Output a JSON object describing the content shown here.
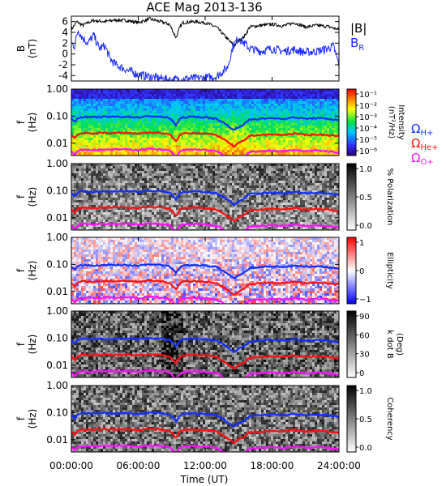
{
  "figure": {
    "title": "ACE Mag 2013-136"
  },
  "colors": {
    "B_mag": "#000000",
    "B_R": "#1a2bff",
    "H": "#1030ff",
    "He": "#ff1010",
    "O": "#ff10ff"
  },
  "legend": {
    "b_mag": "|B|",
    "b_r_base": "B",
    "b_r_sub": "R",
    "omega_h": "Ω",
    "omega_h_sub": "H+",
    "omega_he": "Ω",
    "omega_he_sub": "He+",
    "omega_o": "Ω",
    "omega_o_sub": "O+"
  },
  "x_axis": {
    "label": "Time (UT)",
    "ticks": [
      "00:00:00",
      "06:00:00",
      "12:00:00",
      "18:00:00",
      "24:00:00"
    ],
    "range_hours": [
      0,
      24
    ]
  },
  "chart_data": [
    {
      "type": "line",
      "name": "field",
      "ylabel": "B",
      "yunit": "(nT)",
      "ylim": [
        -5,
        7
      ],
      "yticks": [
        "-4",
        "-2",
        "0",
        "2",
        "4",
        "6"
      ],
      "ytick_values": [
        -4,
        -2,
        0,
        2,
        4,
        6
      ],
      "series": [
        {
          "name": "|B|",
          "color_key": "B_mag",
          "x": [
            0,
            0.5,
            1,
            1.5,
            2,
            3,
            4,
            5,
            6,
            7,
            8,
            8.8,
            9.4,
            9.7,
            10,
            11,
            12,
            13,
            14,
            14.6,
            15,
            15.5,
            16,
            17,
            18,
            19,
            20,
            21,
            22,
            23,
            24
          ],
          "y": [
            4.5,
            6.0,
            5.3,
            5.8,
            6.2,
            6.0,
            6.3,
            6.2,
            5.8,
            6.5,
            6.0,
            5.5,
            3.0,
            4.8,
            5.8,
            6.0,
            5.8,
            5.0,
            2.8,
            1.5,
            2.5,
            3.2,
            5.0,
            5.3,
            5.5,
            5.2,
            5.8,
            5.0,
            5.3,
            5.1,
            4.5
          ]
        },
        {
          "name": "B_R",
          "color_key": "B_R",
          "x": [
            0,
            0.3,
            0.6,
            1,
            1.5,
            2,
            2.5,
            3,
            3.5,
            4,
            4.5,
            5,
            6,
            7,
            8,
            9,
            10,
            11,
            12,
            13,
            14,
            14.5,
            15,
            15.5,
            16,
            17,
            18,
            19,
            20,
            21,
            22,
            23,
            23.5,
            24
          ],
          "y": [
            2,
            1.5,
            4.5,
            3.0,
            2.0,
            3.5,
            1.0,
            1.5,
            -1.0,
            -2.0,
            -2.5,
            -3.0,
            -3.8,
            -4.2,
            -4.5,
            -4.8,
            -4.6,
            -4.5,
            -4.4,
            -4.2,
            -2.5,
            1.5,
            3.0,
            2.0,
            1.0,
            0.5,
            1.0,
            0.5,
            0.8,
            0.3,
            0.5,
            1.0,
            1.5,
            -2.0
          ]
        }
      ]
    },
    {
      "type": "heatmap",
      "name": "intensity",
      "ylabel": "f",
      "yunit": "(Hz)",
      "yscale": "log",
      "ylim": [
        0.0035,
        1.0
      ],
      "yticks": [
        "1.00",
        "0.10",
        "0.01"
      ],
      "ytick_values": [
        1.0,
        0.1,
        0.01
      ],
      "colorbar": {
        "label": "Intensity",
        "unit": "(nT²/Hz)",
        "ticks": [
          "10⁻¹",
          "10⁻²",
          "10⁻³",
          "10⁻⁴",
          "10⁻⁵",
          "10⁻⁶"
        ],
        "cmap": "rainbow"
      },
      "curves": true
    },
    {
      "type": "heatmap",
      "name": "polarization",
      "ylabel": "f",
      "yunit": "(Hz)",
      "yscale": "log",
      "ylim": [
        0.0035,
        1.0
      ],
      "yticks": [
        "1.00",
        "0.10",
        "0.01"
      ],
      "ytick_values": [
        1.0,
        0.1,
        0.01
      ],
      "colorbar": {
        "label": "% Polarization",
        "unit": "",
        "ticks": [
          "1.0",
          "0.5",
          "0.0"
        ],
        "cmap": "gray"
      },
      "curves": true
    },
    {
      "type": "heatmap",
      "name": "ellipticity",
      "ylabel": "f",
      "yunit": "(Hz)",
      "yscale": "log",
      "ylim": [
        0.0035,
        1.0
      ],
      "yticks": [
        "1.00",
        "0.10",
        "0.01"
      ],
      "ytick_values": [
        1.0,
        0.1,
        0.01
      ],
      "colorbar": {
        "label": "Ellipticity",
        "unit": "",
        "ticks": [
          "1",
          "0",
          "−1"
        ],
        "cmap": "bwr"
      },
      "curves": true
    },
    {
      "type": "heatmap",
      "name": "kdotb",
      "ylabel": "f",
      "yunit": "(Hz)",
      "yscale": "log",
      "ylim": [
        0.0035,
        1.0
      ],
      "yticks": [
        "1.00",
        "0.10",
        "0.01"
      ],
      "ytick_values": [
        1.0,
        0.1,
        0.01
      ],
      "colorbar": {
        "label": "k dot B",
        "unit": "(Deg)",
        "ticks": [
          "90",
          "60",
          "30",
          "0"
        ],
        "cmap": "gray"
      },
      "curves": true
    },
    {
      "type": "heatmap",
      "name": "coherency",
      "ylabel": "f",
      "yunit": "(Hz)",
      "yscale": "log",
      "ylim": [
        0.0035,
        1.0
      ],
      "yticks": [
        "1.00",
        "0.10",
        "0.01"
      ],
      "ytick_values": [
        1.0,
        0.1,
        0.01
      ],
      "colorbar": {
        "label": "Coherency",
        "unit": "",
        "ticks": [
          "1.0",
          "0.5",
          "0.0"
        ],
        "cmap": "gray"
      },
      "curves": true
    }
  ],
  "gyrofrequency_curves": {
    "x": [
      0,
      0.3,
      0.6,
      1,
      2,
      3,
      4,
      5,
      6,
      7,
      8,
      8.8,
      9.4,
      9.7,
      10,
      11,
      12,
      13,
      14,
      14.6,
      15,
      15.5,
      16,
      17,
      18,
      19,
      20,
      21,
      22,
      23,
      24
    ],
    "H": [
      0.085,
      0.06,
      0.085,
      0.095,
      0.09,
      0.095,
      0.095,
      0.095,
      0.09,
      0.1,
      0.095,
      0.085,
      0.045,
      0.075,
      0.09,
      0.095,
      0.09,
      0.08,
      0.045,
      0.03,
      0.04,
      0.05,
      0.075,
      0.08,
      0.085,
      0.08,
      0.09,
      0.08,
      0.085,
      0.08,
      0.07
    ],
    "He": [
      0.021,
      0.015,
      0.021,
      0.024,
      0.023,
      0.024,
      0.024,
      0.024,
      0.023,
      0.025,
      0.024,
      0.021,
      0.011,
      0.019,
      0.023,
      0.024,
      0.023,
      0.02,
      0.011,
      0.0075,
      0.01,
      0.0125,
      0.019,
      0.02,
      0.021,
      0.02,
      0.023,
      0.02,
      0.021,
      0.02,
      0.018
    ],
    "O": [
      0.0053,
      0.0038,
      0.0053,
      0.0059,
      0.0056,
      0.0059,
      0.0059,
      0.0059,
      0.0056,
      0.0063,
      0.0059,
      0.0053,
      0.0028,
      0.0047,
      0.0056,
      0.0059,
      0.0056,
      0.005,
      0.0028,
      0.0019,
      0.0025,
      0.0031,
      0.0047,
      0.005,
      0.0053,
      0.005,
      0.0056,
      0.005,
      0.0053,
      0.005,
      0.0044
    ]
  }
}
